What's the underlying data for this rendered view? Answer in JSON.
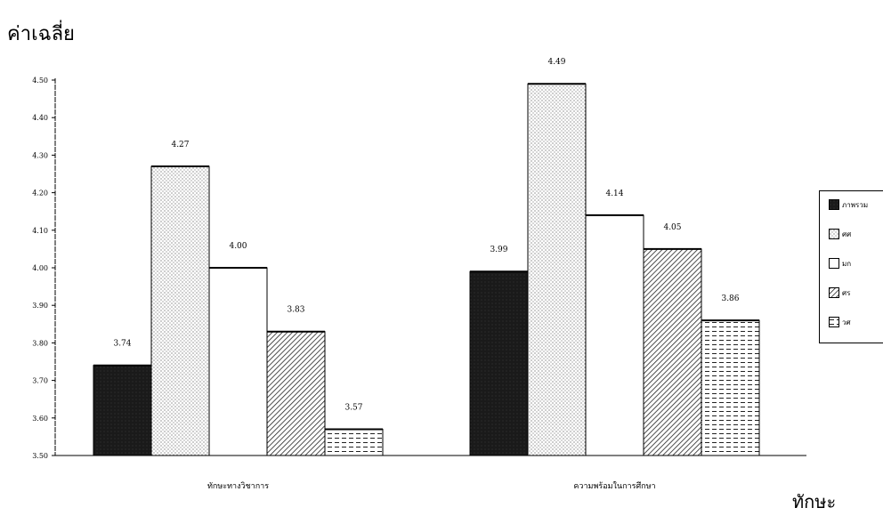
{
  "chart_data": {
    "type": "bar",
    "ylabel": "ค่าเฉลี่ย",
    "xlabel": "ทักษะ",
    "ylim": [
      3.5,
      4.5
    ],
    "yticks": [
      "3.50",
      "3.60",
      "3.70",
      "3.80",
      "3.90",
      "4.00",
      "4.10",
      "4.20",
      "4.30",
      "4.40",
      "4.50"
    ],
    "categories": [
      "ทักษะทางวิชาการ",
      "ความพร้อมในการศึกษา"
    ],
    "series": [
      {
        "name": "ภาพรวม",
        "values": [
          3.74,
          3.99
        ],
        "labels": [
          "3.74",
          "3.99"
        ],
        "pattern": "solid",
        "color": "#1a1a1a"
      },
      {
        "name": "ศศ",
        "values": [
          4.27,
          4.49
        ],
        "labels": [
          "4.27",
          "4.49"
        ],
        "pattern": "dots",
        "color": "#ffffff"
      },
      {
        "name": "มก",
        "values": [
          4.0,
          4.14
        ],
        "labels": [
          "4.00",
          "4.14"
        ],
        "pattern": "blank",
        "color": "#ffffff"
      },
      {
        "name": "ศร",
        "values": [
          3.83,
          4.05
        ],
        "labels": [
          "3.83",
          "4.05"
        ],
        "pattern": "diagonal",
        "color": "#ffffff"
      },
      {
        "name": "วศ",
        "values": [
          3.57,
          3.86
        ],
        "labels": [
          "3.57",
          "3.86"
        ],
        "pattern": "dashes",
        "color": "#ffffff"
      }
    ],
    "legend_position": "right"
  }
}
